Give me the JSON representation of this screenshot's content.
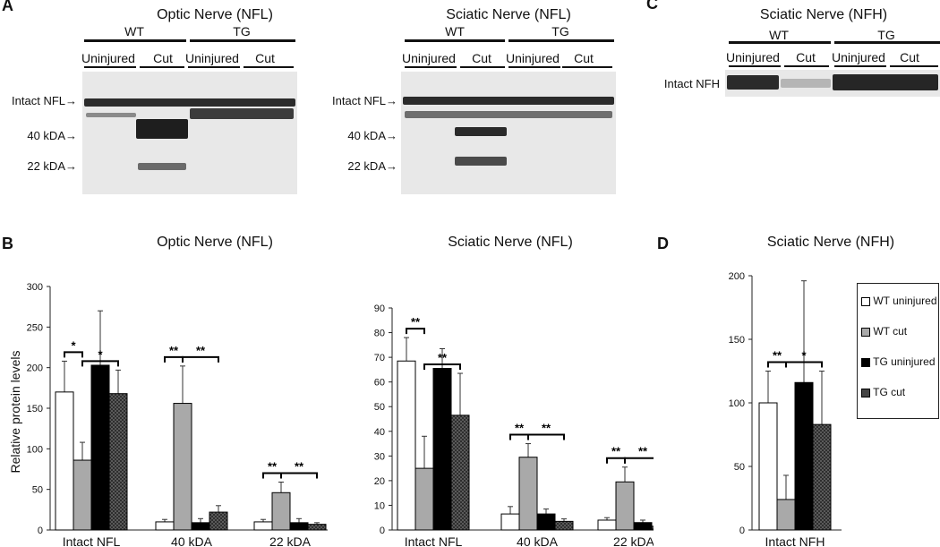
{
  "panel_letters": {
    "a": "A",
    "b": "B",
    "c": "C",
    "d": "D"
  },
  "blots": {
    "optic": {
      "title": "Optic Nerve (NFL)",
      "group_wt": "WT",
      "group_tg": "TG",
      "lanes": [
        "Uninjured",
        "Cut",
        "Uninjured",
        "Cut"
      ],
      "markers": [
        "Intact NFL→",
        "40 kDA→",
        "22 kDA→"
      ]
    },
    "sciatic": {
      "title": "Sciatic Nerve (NFL)",
      "group_wt": "WT",
      "group_tg": "TG",
      "lanes": [
        "Uninjured",
        "Cut",
        "Uninjured",
        "Cut"
      ],
      "markers": [
        "Intact NFL→",
        "40 kDA→",
        "22 kDA→"
      ]
    },
    "nfh": {
      "title": "Sciatic Nerve (NFH)",
      "group_wt": "WT",
      "group_tg": "TG",
      "lanes": [
        "Uninjured",
        "Cut",
        "Uninjured",
        "Cut"
      ],
      "markers": [
        "Intact NFH"
      ]
    }
  },
  "legend": [
    "WT uninjured",
    "WT cut",
    "TG uninjured",
    "TG cut"
  ],
  "chart_data": [
    {
      "type": "bar",
      "title": "Optic Nerve (NFL)",
      "ylabel": "Relative protein levels",
      "ylim": [
        0,
        300
      ],
      "yticks": [
        0,
        50,
        100,
        150,
        200,
        250,
        300
      ],
      "categories": [
        "Intact NFL",
        "40 kDA",
        "22 kDA"
      ],
      "series": [
        {
          "name": "WT uninjured",
          "values": [
            170,
            10,
            10
          ],
          "errors": [
            38,
            3,
            3
          ]
        },
        {
          "name": "WT cut",
          "values": [
            86,
            156,
            46
          ],
          "errors": [
            22,
            46,
            13
          ]
        },
        {
          "name": "TG uninjured",
          "values": [
            203,
            9,
            9
          ],
          "errors": [
            67,
            5,
            5
          ]
        },
        {
          "name": "TG cut",
          "values": [
            168,
            22,
            7
          ],
          "errors": [
            29,
            8,
            2
          ]
        }
      ],
      "significance": [
        {
          "category": 0,
          "pair": [
            0,
            1
          ],
          "label": "*"
        },
        {
          "category": 0,
          "pair": [
            1,
            3
          ],
          "label": "*"
        },
        {
          "category": 1,
          "pair": [
            0,
            1
          ],
          "label": "**"
        },
        {
          "category": 1,
          "pair": [
            1,
            3
          ],
          "label": "**"
        },
        {
          "category": 2,
          "pair": [
            0,
            1
          ],
          "label": "**"
        },
        {
          "category": 2,
          "pair": [
            1,
            3
          ],
          "label": "**"
        }
      ]
    },
    {
      "type": "bar",
      "title": "Sciatic Nerve (NFL)",
      "ylabel": "",
      "ylim": [
        0,
        90
      ],
      "yticks": [
        0,
        10,
        20,
        30,
        40,
        50,
        60,
        70,
        80,
        90
      ],
      "categories": [
        "Intact NFL",
        "40 kDA",
        "22 kDA"
      ],
      "series": [
        {
          "name": "WT uninjured",
          "values": [
            68.5,
            6.5,
            4
          ],
          "errors": [
            9.5,
            3,
            1
          ]
        },
        {
          "name": "WT cut",
          "values": [
            25,
            29.5,
            19.5
          ],
          "errors": [
            13,
            5.5,
            6
          ]
        },
        {
          "name": "TG uninjured",
          "values": [
            65.5,
            6.5,
            3
          ],
          "errors": [
            8,
            2,
            1
          ]
        },
        {
          "name": "TG cut",
          "values": [
            46.5,
            3.5,
            1.5
          ],
          "errors": [
            17,
            1,
            0.5
          ]
        }
      ],
      "significance": [
        {
          "category": 0,
          "pair": [
            0,
            1
          ],
          "label": "**"
        },
        {
          "category": 0,
          "pair": [
            1,
            3
          ],
          "label": "**"
        },
        {
          "category": 1,
          "pair": [
            0,
            1
          ],
          "label": "**"
        },
        {
          "category": 1,
          "pair": [
            1,
            3
          ],
          "label": "**"
        },
        {
          "category": 2,
          "pair": [
            0,
            1
          ],
          "label": "**"
        },
        {
          "category": 2,
          "pair": [
            1,
            3
          ],
          "label": "**"
        }
      ]
    },
    {
      "type": "bar",
      "title": "Sciatic Nerve (NFH)",
      "ylabel": "",
      "ylim": [
        0,
        200
      ],
      "yticks": [
        0,
        50,
        100,
        150,
        200
      ],
      "categories": [
        "Intact NFH"
      ],
      "series": [
        {
          "name": "WT uninjured",
          "values": [
            100
          ],
          "errors": [
            25
          ]
        },
        {
          "name": "WT cut",
          "values": [
            24
          ],
          "errors": [
            19
          ]
        },
        {
          "name": "TG uninjured",
          "values": [
            116
          ],
          "errors": [
            80
          ]
        },
        {
          "name": "TG cut",
          "values": [
            83
          ],
          "errors": [
            42
          ]
        }
      ],
      "significance": [
        {
          "category": 0,
          "pair": [
            0,
            1
          ],
          "label": "**"
        },
        {
          "category": 0,
          "pair": [
            1,
            3
          ],
          "label": "*"
        }
      ],
      "legend_position": "right"
    }
  ]
}
